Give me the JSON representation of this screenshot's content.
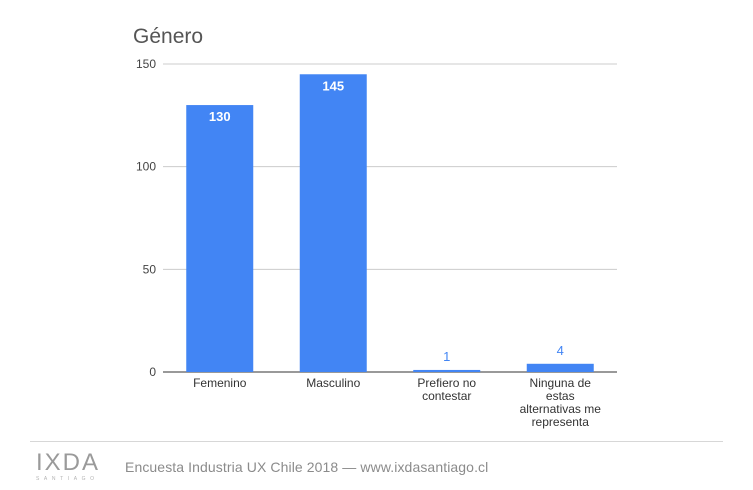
{
  "chart_data": {
    "type": "bar",
    "title": "Género",
    "categories": [
      [
        "Femenino"
      ],
      [
        "Masculino"
      ],
      [
        "Prefiero no",
        "contestar"
      ],
      [
        "Ninguna de",
        "estas",
        "alternativas me",
        "representa"
      ]
    ],
    "values": [
      130,
      145,
      1,
      4
    ],
    "ylim": [
      0,
      150
    ],
    "yticks": [
      0,
      50,
      100,
      150
    ],
    "grid": true,
    "bar_color": "#4285f4",
    "label_inside_color": "#ffffff",
    "label_outside_color": "#4285f4"
  },
  "footer": {
    "logo_text": "IXDA",
    "logo_subtext": "SANTIAGO",
    "caption": "Encuesta Industria UX Chile 2018 — www.ixdasantiago.cl"
  }
}
